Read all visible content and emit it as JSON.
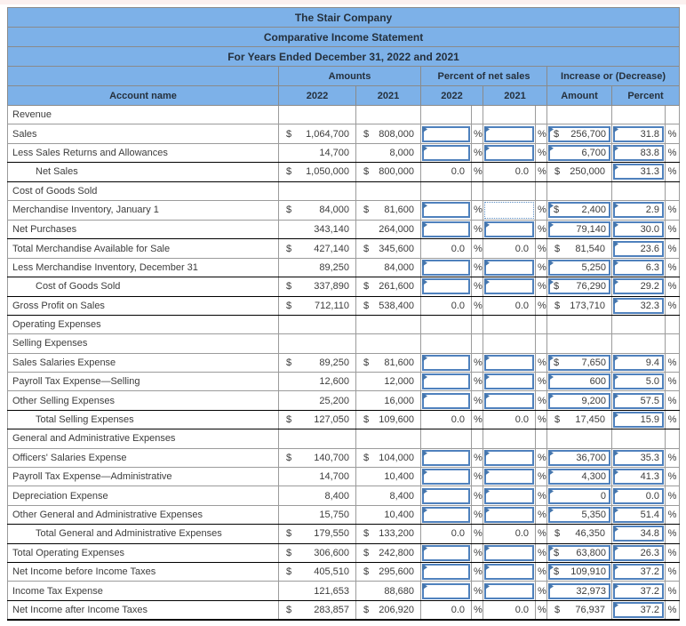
{
  "titles": [
    "The Stair Company",
    "Comparative Income Statement",
    "For Years Ended December 31, 2022 and 2021"
  ],
  "column_groups": {
    "amounts": "Amounts",
    "percent_net_sales": "Percent of net sales",
    "increase_decrease": "Increase or (Decrease)"
  },
  "columns": {
    "account": "Account name",
    "y2022": "2022",
    "y2021": "2021",
    "amount": "Amount",
    "percent": "Percent"
  },
  "dollar_symbol": "$",
  "percent_symbol": "%",
  "colors": {
    "header_bg": "#7db1e8",
    "grid_border": "#9b9b9b",
    "input_border": "#4f81bd",
    "input_flag": "#4576ad",
    "active_cell_border": "#5b8ec4",
    "accounting_rule": "#000000",
    "top_strip": "#fbf0ef"
  },
  "rows": [
    {
      "account": "Revenue",
      "section": true
    },
    {
      "account": "Sales",
      "a2022": {
        "dollar": true,
        "value": "1,064,700"
      },
      "a2021": {
        "dollar": true,
        "value": "808,000"
      },
      "p2022": {
        "kind": "input",
        "value": ""
      },
      "p2021": {
        "kind": "input",
        "value": ""
      },
      "amount": {
        "kind": "input",
        "dollar": true,
        "value": "256,700"
      },
      "percent": {
        "kind": "input",
        "value": "31.8"
      }
    },
    {
      "account": "Less Sales Returns and Allowances",
      "a2022": {
        "value": "14,700"
      },
      "a2021": {
        "value": "8,000"
      },
      "p2022": {
        "kind": "input",
        "value": ""
      },
      "p2021": {
        "kind": "input",
        "value": ""
      },
      "amount": {
        "kind": "input",
        "value": "6,700"
      },
      "percent": {
        "kind": "input",
        "value": "83.8"
      },
      "dark_bottom": true
    },
    {
      "account": "Net Sales",
      "indent": true,
      "a2022": {
        "dollar": true,
        "value": "1,050,000"
      },
      "a2021": {
        "dollar": true,
        "value": "800,000"
      },
      "p2022": {
        "kind": "plain",
        "value": "0.0"
      },
      "p2021": {
        "kind": "plain",
        "value": "0.0"
      },
      "amount": {
        "kind": "plain",
        "dollar": true,
        "value": "250,000"
      },
      "percent": {
        "kind": "input",
        "value": "31.3"
      },
      "dark_bottom": true
    },
    {
      "account": "Cost of Goods Sold",
      "section": true
    },
    {
      "account": "Merchandise Inventory, January 1",
      "a2022": {
        "dollar": true,
        "value": "84,000"
      },
      "a2021": {
        "dollar": true,
        "value": "81,600"
      },
      "p2022": {
        "kind": "input",
        "value": ""
      },
      "p2021": {
        "kind": "active",
        "value": ""
      },
      "amount": {
        "kind": "input",
        "dollar": true,
        "value": "2,400"
      },
      "percent": {
        "kind": "input",
        "value": "2.9"
      }
    },
    {
      "account": "Net Purchases",
      "a2022": {
        "value": "343,140"
      },
      "a2021": {
        "value": "264,000"
      },
      "p2022": {
        "kind": "input",
        "value": ""
      },
      "p2021": {
        "kind": "input",
        "value": ""
      },
      "amount": {
        "kind": "input",
        "value": "79,140"
      },
      "percent": {
        "kind": "input",
        "value": "30.0"
      },
      "dark_bottom": true
    },
    {
      "account": "Total Merchandise Available for Sale",
      "a2022": {
        "dollar": true,
        "value": "427,140"
      },
      "a2021": {
        "dollar": true,
        "value": "345,600"
      },
      "p2022": {
        "kind": "plain",
        "value": "0.0"
      },
      "p2021": {
        "kind": "plain",
        "value": "0.0"
      },
      "amount": {
        "kind": "plain",
        "dollar": true,
        "value": "81,540"
      },
      "percent": {
        "kind": "input",
        "value": "23.6"
      }
    },
    {
      "account": "Less Merchandise Inventory, December 31",
      "a2022": {
        "value": "89,250"
      },
      "a2021": {
        "value": "84,000"
      },
      "p2022": {
        "kind": "input",
        "value": ""
      },
      "p2021": {
        "kind": "input",
        "value": ""
      },
      "amount": {
        "kind": "input",
        "value": "5,250"
      },
      "percent": {
        "kind": "input",
        "value": "6.3"
      },
      "dark_bottom": true
    },
    {
      "account": "Cost of Goods Sold",
      "indent": true,
      "a2022": {
        "dollar": true,
        "value": "337,890"
      },
      "a2021": {
        "dollar": true,
        "value": "261,600"
      },
      "p2022": {
        "kind": "input",
        "value": ""
      },
      "p2021": {
        "kind": "input",
        "value": ""
      },
      "amount": {
        "kind": "input",
        "dollar": true,
        "value": "76,290"
      },
      "percent": {
        "kind": "input",
        "value": "29.2"
      },
      "dark_bottom": true
    },
    {
      "account": "Gross Profit on Sales",
      "a2022": {
        "dollar": true,
        "value": "712,110"
      },
      "a2021": {
        "dollar": true,
        "value": "538,400"
      },
      "p2022": {
        "kind": "plain",
        "value": "0.0"
      },
      "p2021": {
        "kind": "plain",
        "value": "0.0"
      },
      "amount": {
        "kind": "plain",
        "dollar": true,
        "value": "173,710"
      },
      "percent": {
        "kind": "input",
        "value": "32.3"
      },
      "dark_bottom": true
    },
    {
      "account": "Operating Expenses",
      "section": true
    },
    {
      "account": "Selling Expenses",
      "section": true
    },
    {
      "account": "Sales Salaries Expense",
      "a2022": {
        "dollar": true,
        "value": "89,250"
      },
      "a2021": {
        "dollar": true,
        "value": "81,600"
      },
      "p2022": {
        "kind": "input",
        "value": ""
      },
      "p2021": {
        "kind": "input",
        "value": ""
      },
      "amount": {
        "kind": "input",
        "dollar": true,
        "value": "7,650"
      },
      "percent": {
        "kind": "input",
        "value": "9.4"
      }
    },
    {
      "account": "Payroll Tax Expense—Selling",
      "a2022": {
        "value": "12,600"
      },
      "a2021": {
        "value": "12,000"
      },
      "p2022": {
        "kind": "input",
        "value": ""
      },
      "p2021": {
        "kind": "input",
        "value": ""
      },
      "amount": {
        "kind": "input",
        "value": "600"
      },
      "percent": {
        "kind": "input",
        "value": "5.0"
      }
    },
    {
      "account": "Other Selling Expenses",
      "a2022": {
        "value": "25,200"
      },
      "a2021": {
        "value": "16,000"
      },
      "p2022": {
        "kind": "input",
        "value": ""
      },
      "p2021": {
        "kind": "input",
        "value": ""
      },
      "amount": {
        "kind": "input",
        "value": "9,200"
      },
      "percent": {
        "kind": "input",
        "value": "57.5"
      },
      "dark_bottom": true
    },
    {
      "account": "Total Selling Expenses",
      "indent": true,
      "a2022": {
        "dollar": true,
        "value": "127,050"
      },
      "a2021": {
        "dollar": true,
        "value": "109,600"
      },
      "p2022": {
        "kind": "plain",
        "value": "0.0"
      },
      "p2021": {
        "kind": "plain",
        "value": "0.0"
      },
      "amount": {
        "kind": "plain",
        "dollar": true,
        "value": "17,450"
      },
      "percent": {
        "kind": "input",
        "value": "15.9"
      },
      "dark_bottom": true
    },
    {
      "account": "General and Administrative Expenses",
      "section": true
    },
    {
      "account": "Officers' Salaries Expense",
      "a2022": {
        "dollar": true,
        "value": "140,700"
      },
      "a2021": {
        "dollar": true,
        "value": "104,000"
      },
      "p2022": {
        "kind": "input",
        "value": ""
      },
      "p2021": {
        "kind": "input",
        "value": ""
      },
      "amount": {
        "kind": "input",
        "value": "36,700"
      },
      "percent": {
        "kind": "input",
        "value": "35.3"
      }
    },
    {
      "account": "Payroll Tax Expense—Administrative",
      "a2022": {
        "value": "14,700"
      },
      "a2021": {
        "value": "10,400"
      },
      "p2022": {
        "kind": "input",
        "value": ""
      },
      "p2021": {
        "kind": "input",
        "value": ""
      },
      "amount": {
        "kind": "input",
        "value": "4,300"
      },
      "percent": {
        "kind": "input",
        "value": "41.3"
      }
    },
    {
      "account": "Depreciation Expense",
      "a2022": {
        "value": "8,400"
      },
      "a2021": {
        "value": "8,400"
      },
      "p2022": {
        "kind": "input",
        "value": ""
      },
      "p2021": {
        "kind": "input",
        "value": ""
      },
      "amount": {
        "kind": "input",
        "value": "0"
      },
      "percent": {
        "kind": "input",
        "value": "0.0"
      }
    },
    {
      "account": "Other General and Administrative Expenses",
      "a2022": {
        "value": "15,750"
      },
      "a2021": {
        "value": "10,400"
      },
      "p2022": {
        "kind": "input",
        "value": ""
      },
      "p2021": {
        "kind": "input",
        "value": ""
      },
      "amount": {
        "kind": "input",
        "value": "5,350"
      },
      "percent": {
        "kind": "input",
        "value": "51.4"
      },
      "dark_bottom": true
    },
    {
      "account": "Total General and Administrative Expenses",
      "indent": true,
      "a2022": {
        "dollar": true,
        "value": "179,550"
      },
      "a2021": {
        "dollar": true,
        "value": "133,200"
      },
      "p2022": {
        "kind": "plain",
        "value": "0.0"
      },
      "p2021": {
        "kind": "plain",
        "value": "0.0"
      },
      "amount": {
        "kind": "plain",
        "dollar": true,
        "value": "46,350"
      },
      "percent": {
        "kind": "input",
        "value": "34.8"
      },
      "dark_bottom": true
    },
    {
      "account": "Total Operating Expenses",
      "a2022": {
        "dollar": true,
        "value": "306,600"
      },
      "a2021": {
        "dollar": true,
        "value": "242,800"
      },
      "p2022": {
        "kind": "input",
        "value": ""
      },
      "p2021": {
        "kind": "input",
        "value": ""
      },
      "amount": {
        "kind": "input",
        "dollar": true,
        "value": "63,800"
      },
      "percent": {
        "kind": "input",
        "value": "26.3"
      },
      "dark_bottom": true
    },
    {
      "account": "Net Income before Income Taxes",
      "a2022": {
        "dollar": true,
        "value": "405,510"
      },
      "a2021": {
        "dollar": true,
        "value": "295,600"
      },
      "p2022": {
        "kind": "input",
        "value": ""
      },
      "p2021": {
        "kind": "input",
        "value": ""
      },
      "amount": {
        "kind": "input",
        "dollar": true,
        "value": "109,910"
      },
      "percent": {
        "kind": "input",
        "value": "37.2"
      }
    },
    {
      "account": "Income Tax Expense",
      "a2022": {
        "value": "121,653"
      },
      "a2021": {
        "value": "88,680"
      },
      "p2022": {
        "kind": "input",
        "value": ""
      },
      "p2021": {
        "kind": "input",
        "value": ""
      },
      "amount": {
        "kind": "input",
        "value": "32,973"
      },
      "percent": {
        "kind": "input",
        "value": "37.2"
      },
      "dark_bottom": true
    },
    {
      "account": "Net Income after Income Taxes",
      "a2022": {
        "dollar": true,
        "value": "283,857"
      },
      "a2021": {
        "dollar": true,
        "value": "206,920"
      },
      "p2022": {
        "kind": "plain",
        "value": "0.0"
      },
      "p2021": {
        "kind": "plain",
        "value": "0.0"
      },
      "amount": {
        "kind": "plain",
        "dollar": true,
        "value": "76,937"
      },
      "percent": {
        "kind": "input",
        "value": "37.2"
      },
      "thick_bottom": true
    }
  ]
}
